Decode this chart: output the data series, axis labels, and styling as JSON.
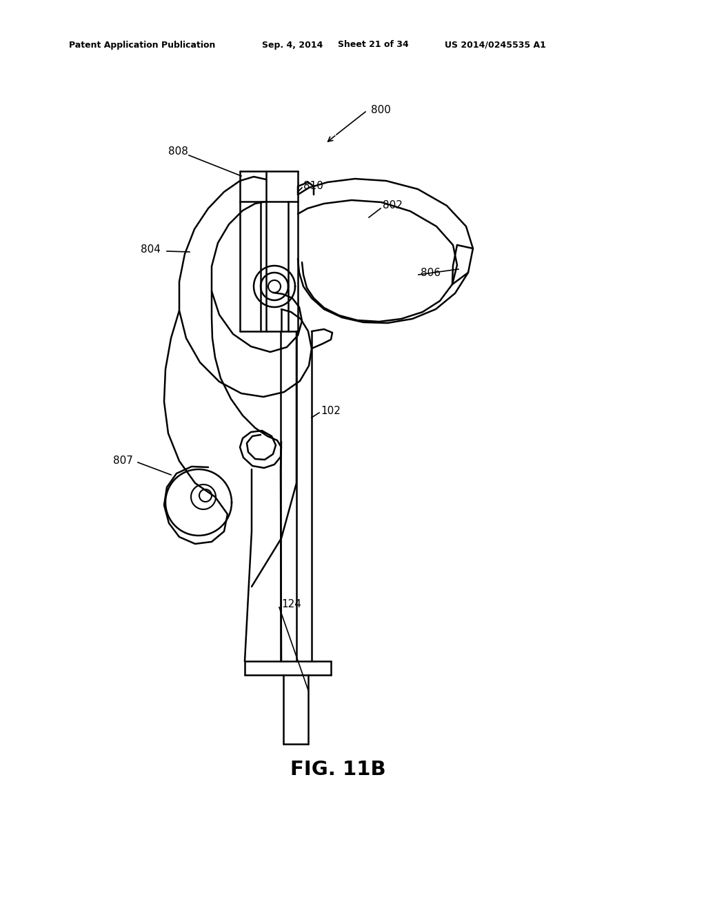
{
  "bg_color": "#ffffff",
  "line_color": "#000000",
  "header_text": "Patent Application Publication",
  "header_date": "Sep. 4, 2014",
  "header_sheet": "Sheet 21 of 34",
  "header_patent": "US 2014/0245535 A1",
  "figure_label": "FIG. 11B"
}
